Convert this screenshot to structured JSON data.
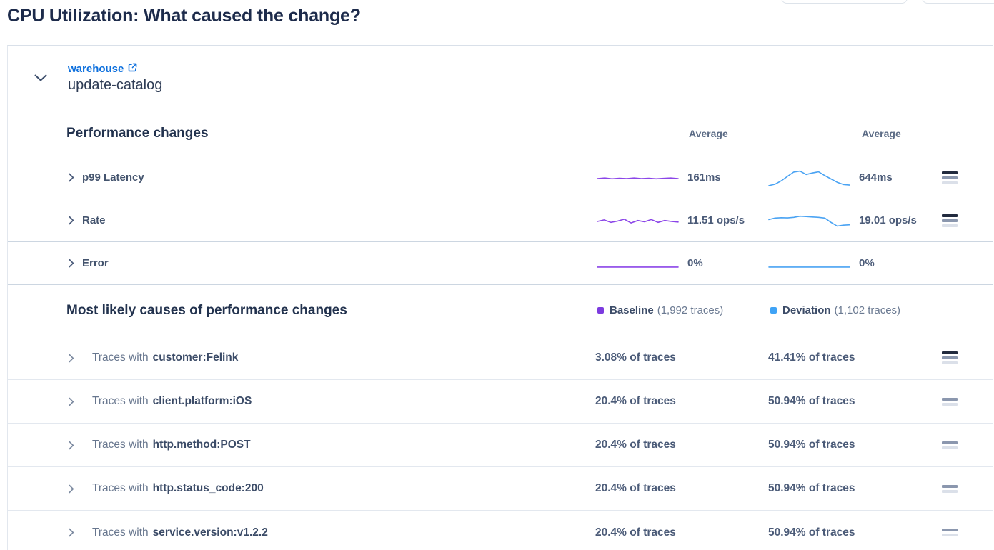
{
  "page": {
    "title": "CPU Utilization: What caused the change?"
  },
  "service": {
    "group": "warehouse",
    "name": "update-catalog"
  },
  "performance": {
    "title": "Performance changes",
    "baseline_column_header": "Average",
    "deviation_column_header": "Average",
    "rows": [
      {
        "label": "p99 Latency",
        "baseline_value": "161ms",
        "deviation_value": "644ms",
        "significance_bars": 3
      },
      {
        "label": "Rate",
        "baseline_value": "11.51 ops/s",
        "deviation_value": "19.01 ops/s",
        "significance_bars": 3
      },
      {
        "label": "Error",
        "baseline_value": "0%",
        "deviation_value": "0%",
        "significance_bars": 0
      }
    ]
  },
  "causes": {
    "title": "Most likely causes of performance changes",
    "legend": {
      "baseline": {
        "label": "Baseline",
        "count": "(1,992 traces)",
        "color": "#7c3bdf"
      },
      "deviation": {
        "label": "Deviation",
        "count": "(1,102 traces)",
        "color": "#3fa3f6"
      }
    },
    "rows": [
      {
        "prefix": "Traces with",
        "tag": "customer:Felink",
        "baseline_value": "3.08% of traces",
        "deviation_value": "41.41% of traces",
        "significance_bars": 3
      },
      {
        "prefix": "Traces with",
        "tag": "client.platform:iOS",
        "baseline_value": "20.4% of traces",
        "deviation_value": "50.94% of traces",
        "significance_bars": 2
      },
      {
        "prefix": "Traces with",
        "tag": "http.method:POST",
        "baseline_value": "20.4% of traces",
        "deviation_value": "50.94% of traces",
        "significance_bars": 2
      },
      {
        "prefix": "Traces with",
        "tag": "http.status_code:200",
        "baseline_value": "20.4% of traces",
        "deviation_value": "50.94% of traces",
        "significance_bars": 2
      },
      {
        "prefix": "Traces with",
        "tag": "service.version:v1.2.2",
        "baseline_value": "20.4% of traces",
        "deviation_value": "50.94% of traces",
        "significance_bars": 2
      }
    ]
  },
  "colors": {
    "baseline_line": "#8b45e8",
    "deviation_line": "#4aa3f3",
    "link_blue": "#0c6fdd",
    "bars_dark": "#222b3e",
    "bars_medium": "#8b97ae",
    "bars_light": "#dbe0e9"
  },
  "chart_data": [
    {
      "type": "line",
      "row": "p99 Latency",
      "series": "baseline",
      "title": "p99 Latency baseline sparkline",
      "average": "161ms",
      "color": "#8b45e8",
      "y_normalized": [
        0.5,
        0.53,
        0.49,
        0.52,
        0.5,
        0.53,
        0.5,
        0.52,
        0.49,
        0.51,
        0.53,
        0.5
      ]
    },
    {
      "type": "line",
      "row": "p99 Latency",
      "series": "deviation",
      "title": "p99 Latency deviation sparkline",
      "average": "644ms",
      "color": "#4aa3f3",
      "y_normalized": [
        0.12,
        0.2,
        0.38,
        0.62,
        0.85,
        0.9,
        0.72,
        0.8,
        0.86,
        0.66,
        0.48,
        0.3,
        0.18,
        0.15
      ]
    },
    {
      "type": "line",
      "row": "Rate",
      "series": "baseline",
      "title": "Rate baseline sparkline",
      "average": "11.51 ops/s",
      "color": "#8b45e8",
      "y_normalized": [
        0.5,
        0.58,
        0.45,
        0.52,
        0.62,
        0.42,
        0.55,
        0.48,
        0.6,
        0.45,
        0.55,
        0.5,
        0.47
      ]
    },
    {
      "type": "line",
      "row": "Rate",
      "series": "deviation",
      "title": "Rate deviation sparkline",
      "average": "19.01 ops/s",
      "color": "#4aa3f3",
      "y_normalized": [
        0.6,
        0.68,
        0.7,
        0.69,
        0.72,
        0.78,
        0.76,
        0.74,
        0.72,
        0.68,
        0.45,
        0.25,
        0.3,
        0.32
      ]
    },
    {
      "type": "line",
      "row": "Error",
      "series": "baseline",
      "title": "Error baseline sparkline",
      "average": "0%",
      "color": "#8b45e8",
      "y_normalized": [
        0.35,
        0.35
      ]
    },
    {
      "type": "line",
      "row": "Error",
      "series": "deviation",
      "title": "Error deviation sparkline",
      "average": "0%",
      "color": "#4aa3f3",
      "y_normalized": [
        0.35,
        0.35
      ]
    }
  ]
}
